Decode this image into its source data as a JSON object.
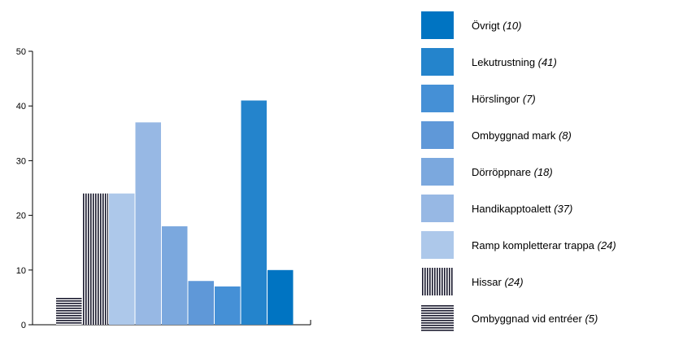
{
  "chart_data": {
    "type": "bar",
    "title": "",
    "xlabel": "",
    "ylabel": "",
    "ylim": [
      0,
      50
    ],
    "yticks": [
      0,
      10,
      20,
      30,
      40,
      50
    ],
    "grid": false,
    "legend_position": "right",
    "categories": [
      "Ombyggnad vid entréer",
      "Hissar",
      "Ramp kompletterar trappa",
      "Handikapptoalett",
      "Dörröppnare",
      "Ombyggnad mark",
      "Hörslingor",
      "Lekutrustning",
      "Övrigt"
    ],
    "values": [
      5,
      24,
      24,
      37,
      18,
      8,
      7,
      41,
      10
    ],
    "fills": [
      "pattern-horizontal",
      "pattern-vertical",
      "#adc8ea",
      "#97b8e4",
      "#7ba8de",
      "#5f98d8",
      "#4590d6",
      "#2484cc",
      "#0074c2"
    ],
    "legend": [
      {
        "name": "Övrigt",
        "count": "(10)",
        "fill": "#0074c2"
      },
      {
        "name": "Lekutrustning",
        "count": "(41)",
        "fill": "#2484cc"
      },
      {
        "name": "Hörslingor",
        "count": "(7)",
        "fill": "#4590d6"
      },
      {
        "name": "Ombyggnad mark",
        "count": "(8)",
        "fill": "#5f98d8"
      },
      {
        "name": "Dörröppnare",
        "count": "(18)",
        "fill": "#7ba8de"
      },
      {
        "name": "Handikapptoalett",
        "count": "(37)",
        "fill": "#97b8e4"
      },
      {
        "name": "Ramp kompletterar trappa",
        "count": "(24)",
        "fill": "#adc8ea"
      },
      {
        "name": "Hissar",
        "count": "(24)",
        "fill": "pattern-vertical"
      },
      {
        "name": "Ombyggnad vid entréer",
        "count": "(5)",
        "fill": "pattern-horizontal"
      }
    ]
  }
}
